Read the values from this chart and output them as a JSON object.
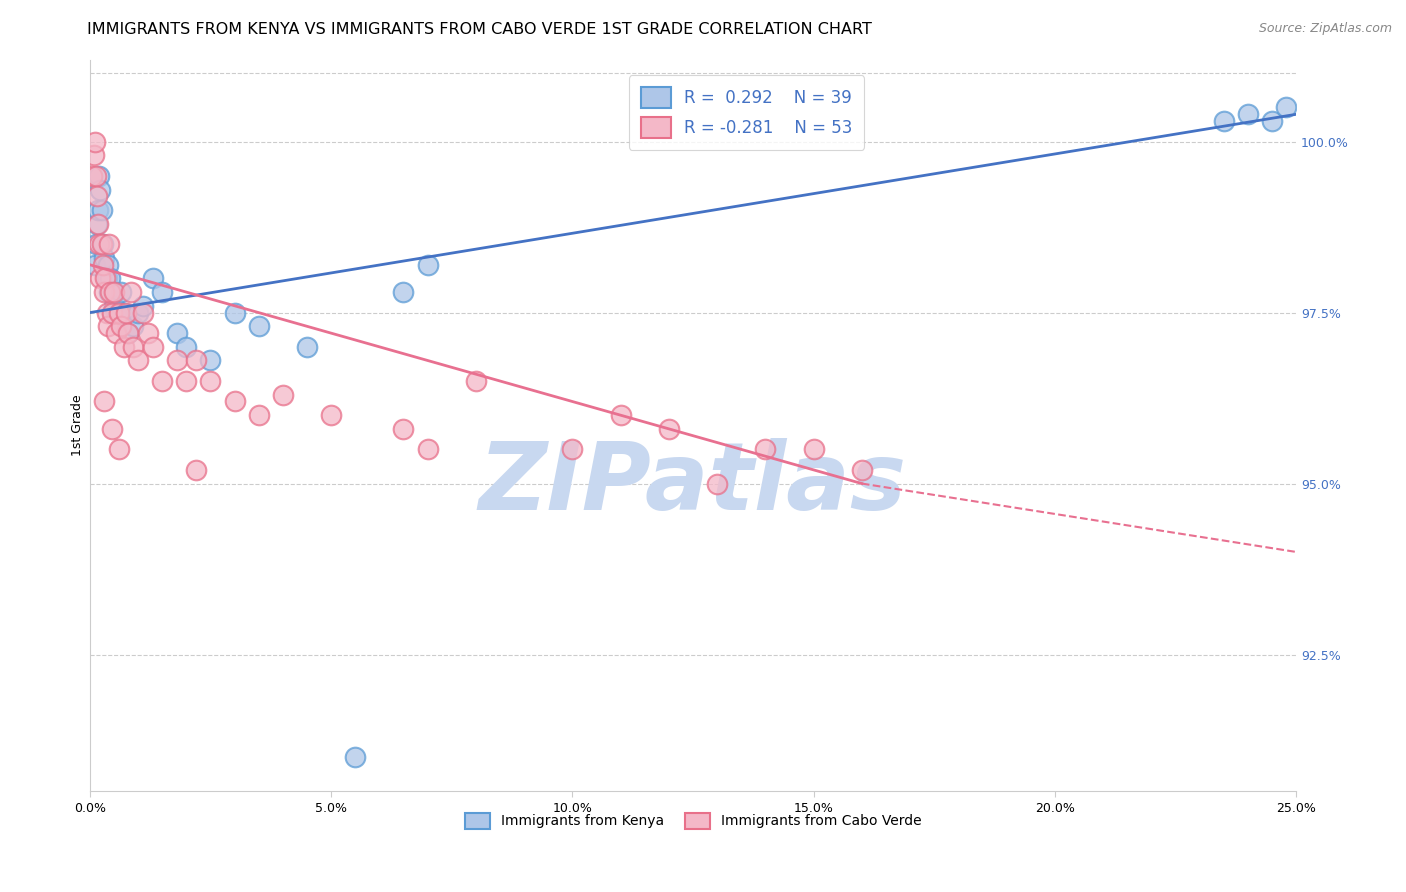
{
  "title": "IMMIGRANTS FROM KENYA VS IMMIGRANTS FROM CABO VERDE 1ST GRADE CORRELATION CHART",
  "source": "Source: ZipAtlas.com",
  "ylabel": "1st Grade",
  "xmin": 0.0,
  "xmax": 25.0,
  "ymin": 90.5,
  "ymax": 101.2,
  "yticks": [
    92.5,
    95.0,
    97.5,
    100.0
  ],
  "ytick_labels": [
    "92.5%",
    "95.0%",
    "97.5%",
    "100.0%"
  ],
  "xticks": [
    0,
    5,
    10,
    15,
    20,
    25
  ],
  "xtick_labels": [
    "0.0%",
    "5.0%",
    "10.0%",
    "15.0%",
    "20.0%",
    "25.0%"
  ],
  "kenya_R": 0.292,
  "kenya_N": 39,
  "cabo_R": -0.281,
  "cabo_N": 53,
  "kenya_color": "#aec6e8",
  "cabo_color": "#f4b8c8",
  "kenya_edge_color": "#5b9bd5",
  "cabo_edge_color": "#e8708a",
  "kenya_line_color": "#4472c4",
  "cabo_line_color": "#e87090",
  "kenya_line_x0": 0.0,
  "kenya_line_y0": 97.5,
  "kenya_line_x1": 25.0,
  "kenya_line_y1": 100.4,
  "cabo_line_x0": 0.0,
  "cabo_line_y0": 98.2,
  "cabo_line_x1": 16.0,
  "cabo_line_y1": 95.0,
  "cabo_dash_x0": 16.0,
  "cabo_dash_y0": 95.0,
  "cabo_dash_x1": 25.0,
  "cabo_dash_y1": 94.0,
  "kenya_x": [
    0.1,
    0.12,
    0.15,
    0.18,
    0.2,
    0.22,
    0.25,
    0.28,
    0.3,
    0.35,
    0.38,
    0.4,
    0.42,
    0.45,
    0.48,
    0.5,
    0.55,
    0.6,
    0.65,
    0.7,
    0.8,
    0.9,
    1.0,
    1.1,
    1.3,
    1.5,
    1.8,
    2.0,
    2.5,
    3.0,
    3.5,
    4.5,
    6.5,
    7.0,
    23.5,
    24.0,
    24.5,
    24.8,
    5.5
  ],
  "kenya_y": [
    98.2,
    98.5,
    98.8,
    99.0,
    99.5,
    99.3,
    99.0,
    98.5,
    98.3,
    98.0,
    98.2,
    97.8,
    98.0,
    97.5,
    97.8,
    97.6,
    97.5,
    97.4,
    97.8,
    97.5,
    97.2,
    97.3,
    97.5,
    97.6,
    98.0,
    97.8,
    97.2,
    97.0,
    96.8,
    97.5,
    97.3,
    97.0,
    97.8,
    98.2,
    100.3,
    100.4,
    100.3,
    100.5,
    91.0
  ],
  "cabo_x": [
    0.05,
    0.08,
    0.1,
    0.12,
    0.15,
    0.18,
    0.2,
    0.22,
    0.25,
    0.28,
    0.3,
    0.32,
    0.35,
    0.38,
    0.4,
    0.42,
    0.45,
    0.5,
    0.55,
    0.6,
    0.65,
    0.7,
    0.75,
    0.8,
    0.85,
    0.9,
    1.0,
    1.1,
    1.2,
    1.3,
    1.5,
    1.8,
    2.0,
    2.2,
    2.5,
    3.0,
    3.5,
    4.0,
    5.0,
    6.5,
    7.0,
    8.0,
    10.0,
    11.0,
    12.0,
    13.0,
    14.0,
    15.0,
    16.0,
    0.3,
    0.45,
    0.6,
    2.2
  ],
  "cabo_y": [
    99.5,
    99.8,
    100.0,
    99.5,
    99.2,
    98.8,
    98.5,
    98.0,
    98.5,
    98.2,
    97.8,
    98.0,
    97.5,
    97.3,
    98.5,
    97.8,
    97.5,
    97.8,
    97.2,
    97.5,
    97.3,
    97.0,
    97.5,
    97.2,
    97.8,
    97.0,
    96.8,
    97.5,
    97.2,
    97.0,
    96.5,
    96.8,
    96.5,
    96.8,
    96.5,
    96.2,
    96.0,
    96.3,
    96.0,
    95.8,
    95.5,
    96.5,
    95.5,
    96.0,
    95.8,
    95.0,
    95.5,
    95.5,
    95.2,
    96.2,
    95.8,
    95.5,
    95.2
  ],
  "watermark_text": "ZIPatlas",
  "watermark_color": "#c8d8f0",
  "title_fontsize": 11.5,
  "source_fontsize": 9,
  "legend_fontsize": 12,
  "tick_fontsize": 9,
  "ylabel_fontsize": 9
}
